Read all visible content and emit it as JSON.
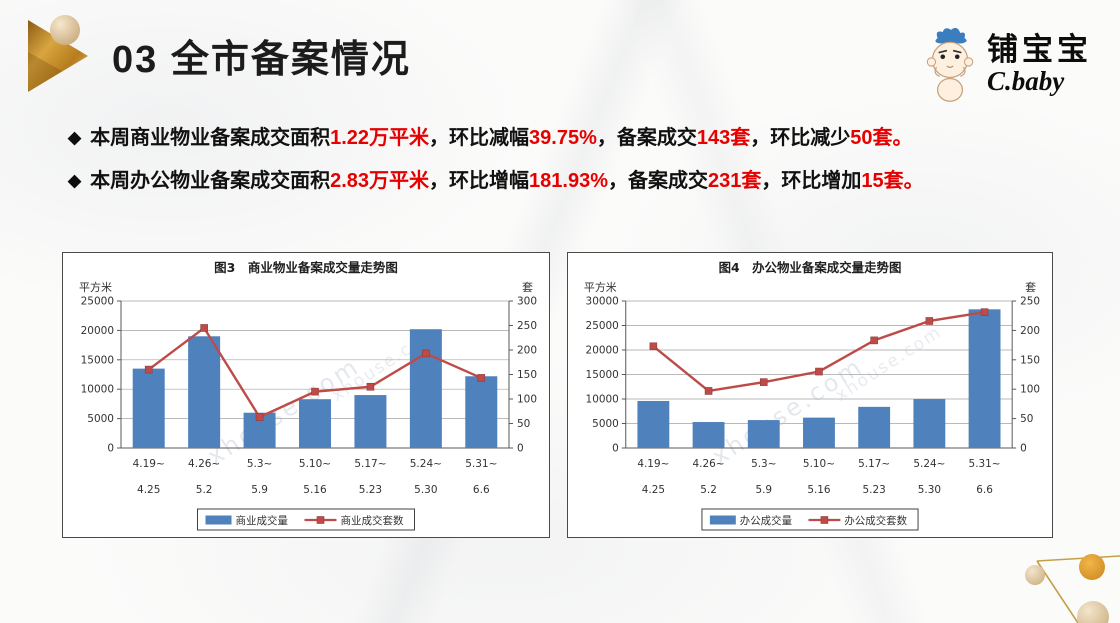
{
  "slide": {
    "title": "03 全市备案情况",
    "bullet_marker": "◆",
    "logo": {
      "name": "铺宝宝",
      "sub": "C.baby"
    },
    "bullets": [
      {
        "segments": [
          {
            "t": "本周商业物业备案成交面积",
            "c": "k"
          },
          {
            "t": "1.22万平米",
            "c": "r"
          },
          {
            "t": "，环比减幅",
            "c": "k"
          },
          {
            "t": "39.75%",
            "c": "r"
          },
          {
            "t": "，备案成交",
            "c": "k"
          },
          {
            "t": "143套",
            "c": "r"
          },
          {
            "t": "，环比减少",
            "c": "k"
          },
          {
            "t": "50套。",
            "c": "r"
          }
        ]
      },
      {
        "segments": [
          {
            "t": "本周办公物业备案成交面积",
            "c": "k"
          },
          {
            "t": "2.83万平米",
            "c": "r"
          },
          {
            "t": "，环比增幅",
            "c": "k"
          },
          {
            "t": "181.93%",
            "c": "r"
          },
          {
            "t": "，备案成交",
            "c": "k"
          },
          {
            "t": "231套",
            "c": "r"
          },
          {
            "t": "，环比增加",
            "c": "k"
          },
          {
            "t": "15套。",
            "c": "r"
          }
        ]
      }
    ]
  },
  "watermark": {
    "text": "xhouse.com"
  },
  "colors": {
    "highlight_red": "#e60000",
    "bar_blue": "#4f81bd",
    "line_red": "#be4b48",
    "gold": "#c3a04a"
  },
  "chart_data": [
    {
      "type": "bar+line",
      "title": "图3　商业物业备案成交量走势图",
      "unit_left": "平方米",
      "unit_right": "套",
      "categories_top": [
        "4.19~",
        "4.26~",
        "5.3~",
        "5.10~",
        "5.17~",
        "5.24~",
        "5.31~"
      ],
      "categories_bottom": [
        "4.25",
        "5.2",
        "5.9",
        "5.16",
        "5.23",
        "5.30",
        "6.6"
      ],
      "series": [
        {
          "name": "商业成交量",
          "type": "bar",
          "axis": "left",
          "values": [
            13500,
            19000,
            6000,
            8300,
            9000,
            20200,
            12200
          ]
        },
        {
          "name": "商业成交套数",
          "type": "line",
          "axis": "right",
          "values": [
            160,
            245,
            63,
            115,
            125,
            193,
            143
          ]
        }
      ],
      "left_axis": {
        "min": 0,
        "max": 25000,
        "step": 5000
      },
      "right_axis": {
        "min": 0,
        "max": 300,
        "step": 50
      },
      "grid": true,
      "legend_position": "bottom",
      "colors": {
        "bar": "#4f81bd",
        "line": "#be4b48"
      }
    },
    {
      "type": "bar+line",
      "title": "图4　办公物业备案成交量走势图",
      "unit_left": "平方米",
      "unit_right": "套",
      "categories_top": [
        "4.19~",
        "4.26~",
        "5.3~",
        "5.10~",
        "5.17~",
        "5.24~",
        "5.31~"
      ],
      "categories_bottom": [
        "4.25",
        "5.2",
        "5.9",
        "5.16",
        "5.23",
        "5.30",
        "6.6"
      ],
      "series": [
        {
          "name": "办公成交量",
          "type": "bar",
          "axis": "left",
          "values": [
            9600,
            5300,
            5700,
            6200,
            8400,
            10000,
            28300
          ]
        },
        {
          "name": "办公成交套数",
          "type": "line",
          "axis": "right",
          "values": [
            173,
            97,
            112,
            130,
            183,
            216,
            231
          ]
        }
      ],
      "left_axis": {
        "min": 0,
        "max": 30000,
        "step": 5000
      },
      "right_axis": {
        "min": 0,
        "max": 250,
        "step": 50
      },
      "grid": true,
      "legend_position": "bottom",
      "colors": {
        "bar": "#4f81bd",
        "line": "#be4b48"
      }
    }
  ]
}
